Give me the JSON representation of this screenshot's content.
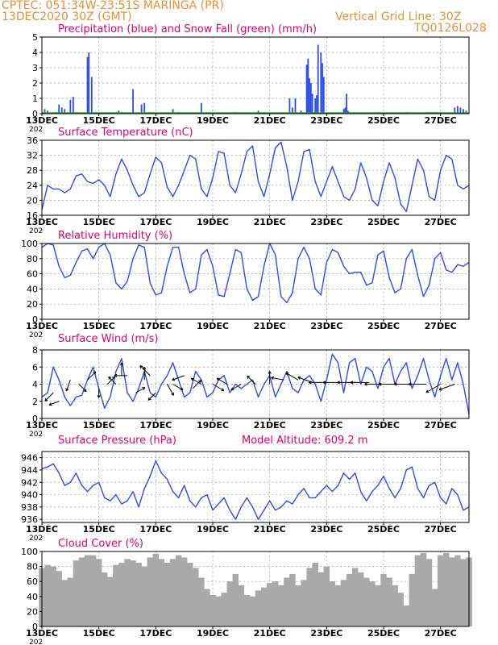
{
  "header": {
    "line1": "CPTEC:   051:34W-23:51S   MARINGA (PR)",
    "line2": "13DEC2020 30Z (GMT)",
    "grid_note": "Vertical Grid Line: 30Z",
    "code": "TQ0126L028",
    "color": "#e69138"
  },
  "colors": {
    "title": "#e0006e",
    "series": "#2d4fe6",
    "snow": "#1aa51a",
    "cloud": "#a9a9a9",
    "axis": "#000000",
    "grid": "#9a9a9a"
  },
  "x_axis": {
    "range_days": [
      13,
      28
    ],
    "tick_labels": [
      "13DEC",
      "15DEC",
      "17DEC",
      "19DEC",
      "21DEC",
      "23DEC",
      "25DEC",
      "27DEC"
    ],
    "tick_days": [
      13,
      15,
      17,
      19,
      21,
      23,
      25,
      27
    ],
    "year_stub": "202"
  },
  "chart_data": [
    {
      "type": "bar",
      "title": "Precipitation (blue) and Snow Fall (green) (mm/h)",
      "ylim": [
        0,
        5
      ],
      "yticks": [
        0,
        1,
        2,
        3,
        4,
        5
      ],
      "series": [
        {
          "color": "#2d4fe6",
          "x": [
            13.1,
            13.2,
            13.6,
            13.7,
            13.8,
            14.0,
            14.1,
            14.6,
            14.65,
            14.75,
            15.7,
            16.2,
            16.5,
            16.6,
            17.6,
            18.6,
            20.6,
            21.7,
            21.8,
            21.9,
            22.1,
            22.3,
            22.35,
            22.4,
            22.45,
            22.5,
            22.6,
            22.65,
            22.7,
            22.8,
            22.85,
            22.9,
            23.6,
            23.65,
            23.7,
            23.75,
            26.5,
            26.6,
            26.7,
            26.8,
            26.9,
            27.0,
            27.5,
            27.6,
            27.7,
            27.8,
            27.9
          ],
          "values": [
            0.3,
            0.2,
            0.6,
            0.4,
            0.3,
            0.9,
            1.1,
            3.7,
            4.0,
            2.4,
            0.2,
            1.6,
            0.6,
            0.7,
            0.3,
            0.7,
            0.2,
            1.0,
            0.4,
            1.0,
            0.2,
            3.2,
            3.6,
            2.3,
            2.0,
            1.3,
            1.0,
            1.2,
            4.5,
            4.0,
            3.3,
            2.4,
            0.3,
            0.4,
            1.3,
            0.2,
            0.1,
            0.1,
            0.1,
            0.1,
            0.1,
            0.1,
            0.4,
            0.5,
            0.4,
            0.3,
            0.2
          ]
        },
        {
          "color": "#1aa51a",
          "x": [
            13.5,
            14.2,
            14.9,
            15.8,
            16.8,
            17.8,
            18.8,
            19.8,
            20.8,
            21.8,
            23.8,
            24.8,
            25.8
          ],
          "values": [
            0.1,
            0.1,
            0.1,
            0.1,
            0.1,
            0.1,
            0.1,
            0.1,
            0.1,
            0.1,
            0.1,
            0.1,
            0.1
          ]
        }
      ]
    },
    {
      "type": "line",
      "title": "Surface Temperature (nC)",
      "ylim": [
        16,
        36
      ],
      "yticks": [
        16,
        20,
        24,
        28,
        32,
        36
      ],
      "x": [
        13.0,
        13.2,
        13.4,
        13.6,
        13.8,
        14.0,
        14.2,
        14.4,
        14.6,
        14.8,
        15.0,
        15.2,
        15.4,
        15.6,
        15.8,
        16.0,
        16.2,
        16.4,
        16.6,
        16.8,
        17.0,
        17.2,
        17.4,
        17.6,
        17.8,
        18.0,
        18.2,
        18.4,
        18.6,
        18.8,
        19.0,
        19.2,
        19.4,
        19.6,
        19.8,
        20.0,
        20.2,
        20.4,
        20.6,
        20.8,
        21.0,
        21.2,
        21.4,
        21.6,
        21.8,
        22.0,
        22.2,
        22.4,
        22.6,
        22.8,
        23.0,
        23.2,
        23.4,
        23.6,
        23.8,
        24.0,
        24.2,
        24.4,
        24.6,
        24.8,
        25.0,
        25.2,
        25.4,
        25.6,
        25.8,
        26.0,
        26.2,
        26.4,
        26.6,
        26.8,
        27.0,
        27.2,
        27.4,
        27.6,
        27.8,
        28.0
      ],
      "values": [
        17.5,
        24,
        23,
        23,
        22,
        23,
        26.5,
        27,
        25,
        24.5,
        25.5,
        24,
        21,
        27,
        31,
        28,
        24,
        21,
        22,
        27,
        31.5,
        30,
        23.5,
        21,
        24,
        28,
        32,
        31,
        23,
        21,
        26,
        33,
        32.5,
        24,
        22,
        27,
        33,
        34.5,
        25,
        21,
        27,
        34,
        35.5,
        29,
        20,
        25,
        33,
        33.5,
        25,
        21,
        25,
        29,
        25,
        21,
        20,
        23,
        30,
        26,
        20,
        18.5,
        25,
        30,
        26,
        19,
        17,
        24,
        31,
        28,
        21,
        20,
        28,
        32,
        31,
        24,
        23,
        24
      ]
    },
    {
      "type": "line",
      "title": "Relative Humidity (%)",
      "ylim": [
        0,
        100
      ],
      "yticks": [
        0,
        20,
        40,
        60,
        80,
        100
      ],
      "x": [
        13.0,
        13.2,
        13.4,
        13.6,
        13.8,
        14.0,
        14.2,
        14.4,
        14.6,
        14.8,
        15.0,
        15.2,
        15.4,
        15.6,
        15.8,
        16.0,
        16.2,
        16.4,
        16.6,
        16.8,
        17.0,
        17.2,
        17.4,
        17.6,
        17.8,
        18.0,
        18.2,
        18.4,
        18.6,
        18.8,
        19.0,
        19.2,
        19.4,
        19.6,
        19.8,
        20.0,
        20.2,
        20.4,
        20.6,
        20.8,
        21.0,
        21.2,
        21.4,
        21.6,
        21.8,
        22.0,
        22.2,
        22.4,
        22.6,
        22.8,
        23.0,
        23.2,
        23.4,
        23.6,
        23.8,
        24.0,
        24.2,
        24.4,
        24.6,
        24.8,
        25.0,
        25.2,
        25.4,
        25.6,
        25.8,
        26.0,
        26.2,
        26.4,
        26.6,
        26.8,
        27.0,
        27.2,
        27.4,
        27.6,
        27.8,
        28.0
      ],
      "values": [
        95,
        100,
        98,
        70,
        55,
        58,
        75,
        90,
        93,
        80,
        95,
        100,
        85,
        48,
        40,
        50,
        80,
        98,
        95,
        48,
        32,
        35,
        70,
        95,
        95,
        60,
        35,
        40,
        85,
        92,
        70,
        32,
        30,
        60,
        92,
        88,
        40,
        25,
        30,
        70,
        100,
        85,
        30,
        22,
        35,
        80,
        95,
        80,
        40,
        32,
        75,
        92,
        88,
        70,
        60,
        62,
        62,
        45,
        48,
        85,
        90,
        55,
        35,
        40,
        80,
        92,
        58,
        30,
        45,
        80,
        88,
        65,
        62,
        72,
        70,
        75
      ]
    },
    {
      "type": "line",
      "title": "Surface Wind (m/s)",
      "ylim": [
        0,
        8
      ],
      "yticks": [
        0,
        2,
        4,
        6,
        8
      ],
      "x": [
        13.0,
        13.2,
        13.4,
        13.6,
        13.8,
        14.0,
        14.2,
        14.4,
        14.6,
        14.8,
        15.0,
        15.2,
        15.4,
        15.6,
        15.8,
        16.0,
        16.2,
        16.4,
        16.6,
        16.8,
        17.0,
        17.2,
        17.4,
        17.6,
        17.8,
        18.0,
        18.2,
        18.4,
        18.6,
        18.8,
        19.0,
        19.2,
        19.4,
        19.6,
        19.8,
        20.0,
        20.2,
        20.4,
        20.6,
        20.8,
        21.0,
        21.2,
        21.4,
        21.6,
        21.8,
        22.0,
        22.2,
        22.4,
        22.6,
        22.8,
        23.0,
        23.2,
        23.4,
        23.6,
        23.8,
        24.0,
        24.2,
        24.4,
        24.6,
        24.8,
        25.0,
        25.2,
        25.4,
        25.6,
        25.8,
        26.0,
        26.2,
        26.4,
        26.6,
        26.8,
        27.0,
        27.2,
        27.4,
        27.6,
        27.8,
        28.0
      ],
      "values": [
        2.5,
        3.0,
        6.0,
        4.5,
        2.5,
        1.5,
        2.5,
        2.7,
        4.5,
        6.0,
        3.5,
        1.2,
        2.5,
        5.5,
        7.0,
        3.0,
        2.0,
        3.5,
        5.5,
        3.0,
        2.5,
        4.0,
        5.0,
        6.5,
        4.5,
        2.5,
        3.0,
        5.5,
        4.5,
        2.5,
        3.0,
        4.5,
        5.0,
        3.0,
        4.0,
        3.5,
        4.0,
        4.5,
        2.5,
        4.0,
        5.0,
        2.5,
        4.0,
        5.5,
        3.5,
        3.0,
        4.5,
        5.0,
        4.0,
        2.0,
        4.5,
        7.5,
        6.5,
        3.0,
        6.5,
        7.0,
        4.0,
        6.0,
        5.5,
        3.5,
        6.0,
        7.0,
        4.0,
        5.5,
        6.5,
        3.5,
        5.0,
        7.0,
        4.5,
        2.5,
        5.0,
        7.0,
        4.5,
        6.5,
        4.0,
        0.5
      ],
      "arrows": {
        "x": [
          13.4,
          13.6,
          14.0,
          14.3,
          14.6,
          15.0,
          15.3,
          15.6,
          15.8,
          16.0,
          16.3,
          16.6,
          16.8,
          17.0,
          17.4,
          17.6,
          18.0,
          18.3,
          18.6,
          19.0,
          19.5,
          20.0,
          20.5,
          21.0,
          21.5,
          22.0,
          22.5,
          23.0,
          23.5,
          24.0,
          24.5,
          25.0,
          25.5,
          26.0,
          26.5,
          27.0,
          27.5
        ],
        "y": [
          3.0,
          2.0,
          4.5,
          4.0,
          4.5,
          3.5,
          4.0,
          4.0,
          5.0,
          5.0,
          3.0,
          4.5,
          5.0,
          3.0,
          4.0,
          4.0,
          5.0,
          3.5,
          4.0,
          4.0,
          4.0,
          4.0,
          4.0,
          4.0,
          4.5,
          4.5,
          4.2,
          4.2,
          4.2,
          4.2,
          4.2,
          4.0,
          4.0,
          4.0,
          4.0,
          4.0,
          4.0
        ],
        "dir_deg": [
          225,
          200,
          250,
          315,
          45,
          270,
          45,
          135,
          90,
          180,
          30,
          90,
          135,
          225,
          300,
          330,
          200,
          45,
          150,
          330,
          150,
          210,
          135,
          90,
          170,
          150,
          160,
          180,
          180,
          180,
          180,
          180,
          180,
          180,
          180,
          210,
          200
        ],
        "mag": [
          3.5,
          3.0,
          3.5,
          3.0,
          3.5,
          2.5,
          3.0,
          3.0,
          4.0,
          4.0,
          3.0,
          4.0,
          4.5,
          3.0,
          4.0,
          3.5,
          4.0,
          3.5,
          3.5,
          4.0,
          3.5,
          3.5,
          3.5,
          4.0,
          4.0,
          4.5,
          5.0,
          6.0,
          6.0,
          6.0,
          6.5,
          6.5,
          6.5,
          6.0,
          6.0,
          5.5,
          5.5
        ]
      }
    },
    {
      "type": "line",
      "title": "Surface Pressure (hPa)",
      "annotation": "Model Altitude: 609.2  m",
      "ylim": [
        935.5,
        947
      ],
      "yticks": [
        936,
        938,
        940,
        942,
        944,
        946
      ],
      "x": [
        13.0,
        13.2,
        13.4,
        13.6,
        13.8,
        14.0,
        14.2,
        14.4,
        14.6,
        14.8,
        15.0,
        15.2,
        15.4,
        15.6,
        15.8,
        16.0,
        16.2,
        16.4,
        16.6,
        16.8,
        17.0,
        17.2,
        17.4,
        17.6,
        17.8,
        18.0,
        18.2,
        18.4,
        18.6,
        18.8,
        19.0,
        19.2,
        19.4,
        19.6,
        19.8,
        20.0,
        20.2,
        20.4,
        20.6,
        20.8,
        21.0,
        21.2,
        21.4,
        21.6,
        21.8,
        22.0,
        22.2,
        22.4,
        22.6,
        22.8,
        23.0,
        23.2,
        23.4,
        23.6,
        23.8,
        24.0,
        24.2,
        24.4,
        24.6,
        24.8,
        25.0,
        25.2,
        25.4,
        25.6,
        25.8,
        26.0,
        26.2,
        26.4,
        26.6,
        26.8,
        27.0,
        27.2,
        27.4,
        27.6,
        27.8,
        28.0
      ],
      "values": [
        944.2,
        944.5,
        945.0,
        943.5,
        941.5,
        942.0,
        943.5,
        941.5,
        940.5,
        941.5,
        942.0,
        939.5,
        939.0,
        940.0,
        938.5,
        939.0,
        940.5,
        938.0,
        941.0,
        943.0,
        945.5,
        943.5,
        942.5,
        940.5,
        939.5,
        941.5,
        939.0,
        938.0,
        939.5,
        940.0,
        937.5,
        938.5,
        939.5,
        937.5,
        936.0,
        938.0,
        939.5,
        938.0,
        936.0,
        937.5,
        939.0,
        937.5,
        938.0,
        939.0,
        938.5,
        940.0,
        941.0,
        939.5,
        939.5,
        940.5,
        941.5,
        940.5,
        941.5,
        943.5,
        942.5,
        943.5,
        940.5,
        939.0,
        940.5,
        941.5,
        943.0,
        941.0,
        939.5,
        941.0,
        944.0,
        944.5,
        941.0,
        939.5,
        941.5,
        942.0,
        939.5,
        938.5,
        941.0,
        940.0,
        937.5,
        938.0
      ]
    },
    {
      "type": "bar",
      "title": "Cloud Cover (%)",
      "ylim": [
        0,
        100
      ],
      "yticks": [
        0,
        20,
        40,
        60,
        80,
        100
      ],
      "x": [
        13.0,
        13.2,
        13.4,
        13.6,
        13.8,
        14.0,
        14.2,
        14.4,
        14.6,
        14.8,
        15.0,
        15.2,
        15.4,
        15.6,
        15.8,
        16.0,
        16.2,
        16.4,
        16.6,
        16.8,
        17.0,
        17.2,
        17.4,
        17.6,
        17.8,
        18.0,
        18.2,
        18.4,
        18.6,
        18.8,
        19.0,
        19.2,
        19.4,
        19.6,
        19.8,
        20.0,
        20.2,
        20.4,
        20.6,
        20.8,
        21.0,
        21.2,
        21.4,
        21.6,
        21.8,
        22.0,
        22.2,
        22.4,
        22.6,
        22.8,
        23.0,
        23.2,
        23.4,
        23.6,
        23.8,
        24.0,
        24.2,
        24.4,
        24.6,
        24.8,
        25.0,
        25.2,
        25.4,
        25.6,
        25.8,
        26.0,
        26.2,
        26.4,
        26.6,
        26.8,
        27.0,
        27.2,
        27.4,
        27.6,
        27.8,
        28.0
      ],
      "values": [
        78,
        82,
        80,
        74,
        62,
        65,
        88,
        92,
        95,
        95,
        90,
        72,
        66,
        82,
        85,
        90,
        88,
        85,
        80,
        92,
        97,
        90,
        85,
        90,
        95,
        92,
        85,
        78,
        65,
        50,
        42,
        40,
        45,
        60,
        70,
        55,
        42,
        40,
        48,
        52,
        58,
        60,
        55,
        65,
        70,
        55,
        62,
        78,
        85,
        72,
        80,
        60,
        55,
        62,
        70,
        78,
        72,
        65,
        60,
        55,
        70,
        65,
        55,
        45,
        28,
        70,
        95,
        98,
        90,
        50,
        95,
        98,
        92,
        95,
        90,
        92
      ]
    }
  ]
}
